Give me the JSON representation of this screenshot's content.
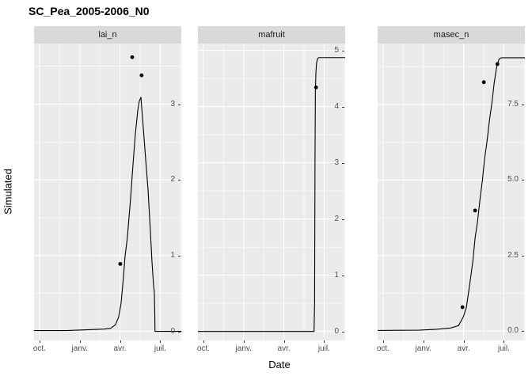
{
  "title": "SC_Pea_2005-2006_N0",
  "axes": {
    "x_title": "Date",
    "y_title": "Simulated"
  },
  "colors": {
    "background": "#FFFFFF",
    "panel_bg": "#EBEBEB",
    "strip_bg": "#D9D9D9",
    "grid": "#FFFFFF",
    "line": "#000000",
    "point": "#000000",
    "tick_label": "#4D4D4D",
    "strip_text": "#1A1A1A",
    "title_text": "#000000"
  },
  "chart_data": {
    "type": "line",
    "title": "SC_Pea_2005-2006_N0",
    "xlabel": "Date",
    "ylabel": "Simulated",
    "legend": "none",
    "grid": "on",
    "x_axis": {
      "unit": "months after Oct 1 (growing season 2005-2006)",
      "lim": [
        -0.41,
        10.57
      ],
      "ticks": [
        0,
        3,
        6,
        9
      ],
      "tick_labels": [
        "oct.",
        "janv.",
        "avr.",
        "juil."
      ]
    },
    "facets": [
      {
        "name": "lai_n",
        "ylim": [
          -0.12,
          3.8
        ],
        "yticks": [
          0,
          1,
          2,
          3
        ],
        "ytick_labels": [
          "0",
          "1",
          "2",
          "3"
        ],
        "line": [
          [
            -0.41,
            0.01
          ],
          [
            2,
            0.01
          ],
          [
            3.5,
            0.02
          ],
          [
            4.8,
            0.03
          ],
          [
            5.31,
            0.04
          ],
          [
            5.67,
            0.09
          ],
          [
            5.9,
            0.19
          ],
          [
            6.08,
            0.37
          ],
          [
            6.26,
            0.72
          ],
          [
            6.37,
            0.98
          ],
          [
            6.55,
            1.24
          ],
          [
            6.79,
            1.76
          ],
          [
            6.96,
            2.18
          ],
          [
            7.14,
            2.6
          ],
          [
            7.32,
            2.91
          ],
          [
            7.44,
            3.04
          ],
          [
            7.56,
            3.09
          ],
          [
            7.73,
            2.7
          ],
          [
            7.91,
            2.28
          ],
          [
            8.09,
            1.87
          ],
          [
            8.26,
            1.34
          ],
          [
            8.38,
            0.93
          ],
          [
            8.5,
            0.61
          ],
          [
            8.56,
            0.52
          ],
          [
            8.59,
            0.25
          ],
          [
            8.61,
            0
          ],
          [
            10.57,
            0
          ]
        ],
        "points": [
          [
            6.02,
            0.89
          ],
          [
            6.91,
            3.62
          ],
          [
            7.61,
            3.38
          ]
        ]
      },
      {
        "name": "mafruit",
        "ylim": [
          -0.16,
          5.12
        ],
        "yticks": [
          0,
          1,
          2,
          3,
          4,
          5
        ],
        "ytick_labels": [
          "0",
          "1",
          "2",
          "3",
          "4",
          "5"
        ],
        "line": [
          [
            -0.41,
            0
          ],
          [
            8.25,
            0
          ],
          [
            8.29,
            0.5
          ],
          [
            8.32,
            3
          ],
          [
            8.35,
            4.3
          ],
          [
            8.39,
            4.62
          ],
          [
            8.44,
            4.78
          ],
          [
            8.52,
            4.85
          ],
          [
            8.6,
            4.87
          ],
          [
            10.57,
            4.87
          ]
        ],
        "points": [
          [
            8.4,
            4.34
          ]
        ]
      },
      {
        "name": "masec_n",
        "ylim": [
          -0.31,
          9.52
        ],
        "yticks": [
          0,
          2.5,
          5,
          7.5
        ],
        "ytick_labels": [
          "0.0",
          "2.5",
          "5.0",
          "7.5"
        ],
        "line": [
          [
            -0.41,
            0.02
          ],
          [
            2.66,
            0.03
          ],
          [
            4,
            0.06
          ],
          [
            5.03,
            0.1
          ],
          [
            5.62,
            0.18
          ],
          [
            5.98,
            0.47
          ],
          [
            6.21,
            0.79
          ],
          [
            6.45,
            1.52
          ],
          [
            6.69,
            2.31
          ],
          [
            6.86,
            3.09
          ],
          [
            7.04,
            3.62
          ],
          [
            7.22,
            4.35
          ],
          [
            7.4,
            4.98
          ],
          [
            7.57,
            5.72
          ],
          [
            7.75,
            6.29
          ],
          [
            7.93,
            6.98
          ],
          [
            8.11,
            7.55
          ],
          [
            8.28,
            8.21
          ],
          [
            8.46,
            8.73
          ],
          [
            8.64,
            9
          ],
          [
            8.82,
            9.05
          ],
          [
            10.57,
            9.05
          ]
        ],
        "points": [
          [
            5.92,
            0.79
          ],
          [
            6.86,
            3.99
          ],
          [
            7.51,
            8.24
          ],
          [
            8.52,
            8.84
          ]
        ]
      }
    ]
  }
}
